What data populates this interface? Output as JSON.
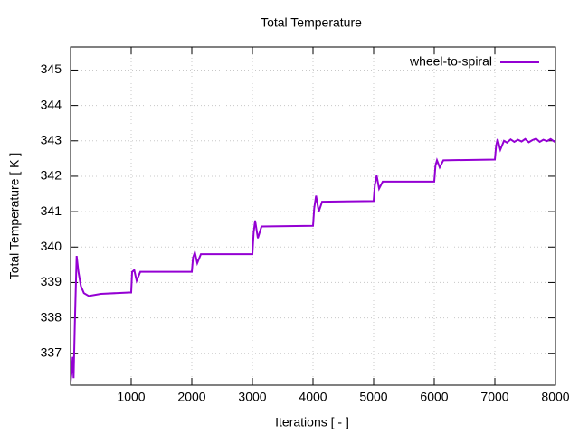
{
  "chart_data": {
    "type": "line",
    "title": "Total Temperature",
    "xlabel": "Iterations [ - ]",
    "ylabel": "Total Temperature [ K ]",
    "x": [
      0,
      20,
      35,
      50,
      70,
      100,
      130,
      170,
      220,
      300,
      500,
      1000,
      1015,
      1050,
      1090,
      1150,
      2000,
      2020,
      2050,
      2090,
      2150,
      3000,
      3020,
      3045,
      3090,
      3150,
      4000,
      4020,
      4050,
      4095,
      4150,
      5000,
      5020,
      5050,
      5090,
      5150,
      6000,
      6020,
      6045,
      6090,
      6150,
      7000,
      7020,
      7045,
      7090,
      7150,
      7200,
      7260,
      7320,
      7380,
      7440,
      7500,
      7560,
      7620,
      7680,
      7740,
      7800,
      7860,
      7920,
      7980,
      8000
    ],
    "series": [
      {
        "name": "wheel-to-spiral",
        "color": "#9400d3",
        "values": [
          336.2,
          336.5,
          336.9,
          336.3,
          337.8,
          339.75,
          339.3,
          338.9,
          338.7,
          338.62,
          338.68,
          338.72,
          339.3,
          339.35,
          339.05,
          339.3,
          339.3,
          339.7,
          339.85,
          339.55,
          339.8,
          339.8,
          340.4,
          340.75,
          340.25,
          340.58,
          340.6,
          341.1,
          341.45,
          341.0,
          341.28,
          341.3,
          341.75,
          342.02,
          341.65,
          341.85,
          341.85,
          342.3,
          342.45,
          342.25,
          342.45,
          342.47,
          342.85,
          343.05,
          342.75,
          343.0,
          342.95,
          343.04,
          342.97,
          343.03,
          342.98,
          343.05,
          342.96,
          343.02,
          343.06,
          342.97,
          343.03,
          342.99,
          343.05,
          342.98,
          343.01
        ]
      }
    ],
    "xlim": [
      0,
      8000
    ],
    "ylim": [
      336.1,
      345.65
    ],
    "xticks": [
      1000,
      2000,
      3000,
      4000,
      5000,
      6000,
      7000,
      8000
    ],
    "yticks": [
      337,
      338,
      339,
      340,
      341,
      342,
      343,
      344,
      345
    ],
    "grid": true,
    "legend": "upper right"
  }
}
